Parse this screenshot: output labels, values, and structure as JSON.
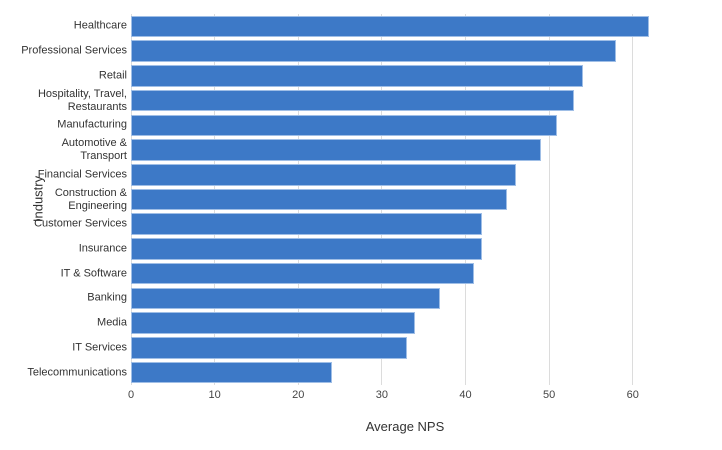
{
  "chart_data": {
    "type": "bar",
    "orientation": "horizontal",
    "title": "",
    "xlabel": "Average NPS",
    "ylabel": "Industry",
    "categories": [
      "Healthcare",
      "Professional Services",
      "Retail",
      "Hospitality, Travel, Restaurants",
      "Manufacturing",
      "Automotive & Transport",
      "Financial Services",
      "Construction & Engineering",
      "Customer Services",
      "Insurance",
      "IT & Software",
      "Banking",
      "Media",
      "IT Services",
      "Telecommunications"
    ],
    "label_lines": [
      [
        "Healthcare"
      ],
      [
        "Professional Services"
      ],
      [
        "Retail"
      ],
      [
        "Hospitality, Travel,",
        "Restaurants"
      ],
      [
        "Manufacturing"
      ],
      [
        "Automotive &",
        "Transport"
      ],
      [
        "Financial Services"
      ],
      [
        "Construction &",
        "Engineering"
      ],
      [
        "Customer Services"
      ],
      [
        "Insurance"
      ],
      [
        "IT & Software"
      ],
      [
        "Banking"
      ],
      [
        "Media"
      ],
      [
        "IT Services"
      ],
      [
        "Telecommunications"
      ]
    ],
    "values": [
      62,
      58,
      54,
      53,
      51,
      49,
      46,
      45,
      42,
      42,
      41,
      37,
      34,
      33,
      24
    ],
    "xlim": [
      0,
      69
    ],
    "xticks": [
      0,
      10,
      20,
      30,
      40,
      50,
      60
    ],
    "grid": true,
    "legend": false,
    "colors": {
      "bar_fill": "#3D79C7",
      "bar_edge": "#9FBEE6",
      "gridline": "#DCDCDC",
      "tick_label": "#444444",
      "category_label": "#333333",
      "axis_title": "#333333",
      "background": "#FFFFFF"
    }
  }
}
